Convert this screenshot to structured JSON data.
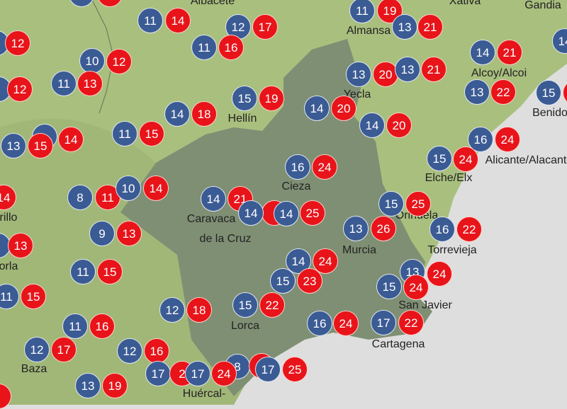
{
  "map": {
    "colors": {
      "min_pin": "#3b5b94",
      "max_pin": "#e8141a",
      "land": "#a9bf7e",
      "region": "#7d8d72",
      "sea": "#dedede"
    },
    "labels": [
      "Albacete",
      "Xàtiva",
      "Gandia",
      "Almansa",
      "Alcoy/Alcoi",
      "Yecla",
      "Hellín",
      "Benido",
      "Alicante/Alacant",
      "Elche/Elx",
      "Cieza",
      "Caravaca",
      "de la Cruz",
      "rillo",
      "orla",
      "Orihuela",
      "Murcia",
      "Torrevieja",
      "San Javier",
      "Lorca",
      "Cartagena",
      "Baza",
      "Huércal-"
    ],
    "pins": [
      {
        "v": "",
        "k": "min"
      },
      {
        "v": "",
        "k": "max"
      },
      {
        "v": "11",
        "k": "min"
      },
      {
        "v": "14",
        "k": "max"
      },
      {
        "v": "12",
        "k": "min"
      },
      {
        "v": "17",
        "k": "max"
      },
      {
        "v": "11",
        "k": "min"
      },
      {
        "v": "16",
        "k": "max"
      },
      {
        "v": "",
        "k": "min"
      },
      {
        "v": "12",
        "k": "max"
      },
      {
        "v": "10",
        "k": "min"
      },
      {
        "v": "12",
        "k": "max"
      },
      {
        "v": "11",
        "k": "min"
      },
      {
        "v": "13",
        "k": "max"
      },
      {
        "v": "",
        "k": "min"
      },
      {
        "v": "12",
        "k": "max"
      },
      {
        "v": "15",
        "k": "min"
      },
      {
        "v": "19",
        "k": "max"
      },
      {
        "v": "14",
        "k": "min"
      },
      {
        "v": "18",
        "k": "max"
      },
      {
        "v": "11",
        "k": "min"
      },
      {
        "v": "15",
        "k": "max"
      },
      {
        "v": "",
        "k": "min"
      },
      {
        "v": "13",
        "k": "min"
      },
      {
        "v": "15",
        "k": "max"
      },
      {
        "v": "14",
        "k": "max"
      },
      {
        "v": "14",
        "k": "max"
      },
      {
        "v": "8",
        "k": "min"
      },
      {
        "v": "11",
        "k": "max"
      },
      {
        "v": "10",
        "k": "min"
      },
      {
        "v": "14",
        "k": "max"
      },
      {
        "v": "14",
        "k": "min"
      },
      {
        "v": "21",
        "k": "max"
      },
      {
        "v": "11",
        "k": "min"
      },
      {
        "v": "19",
        "k": "max"
      },
      {
        "v": "13",
        "k": "min"
      },
      {
        "v": "21",
        "k": "max"
      },
      {
        "v": "14",
        "k": "min"
      },
      {
        "v": "14",
        "k": "min"
      },
      {
        "v": "21",
        "k": "max"
      },
      {
        "v": "13",
        "k": "min"
      },
      {
        "v": "20",
        "k": "max"
      },
      {
        "v": "13",
        "k": "min"
      },
      {
        "v": "21",
        "k": "max"
      },
      {
        "v": "13",
        "k": "min"
      },
      {
        "v": "22",
        "k": "max"
      },
      {
        "v": "15",
        "k": "min"
      },
      {
        "v": "",
        "k": "max"
      },
      {
        "v": "14",
        "k": "min"
      },
      {
        "v": "20",
        "k": "max"
      },
      {
        "v": "14",
        "k": "min"
      },
      {
        "v": "20",
        "k": "max"
      },
      {
        "v": "16",
        "k": "min"
      },
      {
        "v": "24",
        "k": "max"
      },
      {
        "v": "16",
        "k": "min"
      },
      {
        "v": "24",
        "k": "max"
      },
      {
        "v": "15",
        "k": "min"
      },
      {
        "v": "24",
        "k": "max"
      },
      {
        "v": "",
        "k": "max"
      },
      {
        "v": "14",
        "k": "min"
      },
      {
        "v": "14",
        "k": "min"
      },
      {
        "v": "25",
        "k": "max"
      },
      {
        "v": "15",
        "k": "min"
      },
      {
        "v": "25",
        "k": "max"
      },
      {
        "v": "13",
        "k": "min"
      },
      {
        "v": "26",
        "k": "max"
      },
      {
        "v": "16",
        "k": "min"
      },
      {
        "v": "22",
        "k": "max"
      },
      {
        "v": "9",
        "k": "min"
      },
      {
        "v": "13",
        "k": "max"
      },
      {
        "v": "",
        "k": "min"
      },
      {
        "v": "13",
        "k": "max"
      },
      {
        "v": "14",
        "k": "min"
      },
      {
        "v": "24",
        "k": "max"
      },
      {
        "v": "11",
        "k": "min"
      },
      {
        "v": "15",
        "k": "max"
      },
      {
        "v": "13",
        "k": "min"
      },
      {
        "v": "24",
        "k": "max"
      },
      {
        "v": "15",
        "k": "min"
      },
      {
        "v": "23",
        "k": "max"
      },
      {
        "v": "15",
        "k": "min"
      },
      {
        "v": "24",
        "k": "max"
      },
      {
        "v": "11",
        "k": "min"
      },
      {
        "v": "15",
        "k": "max"
      },
      {
        "v": "15",
        "k": "min"
      },
      {
        "v": "22",
        "k": "max"
      },
      {
        "v": "12",
        "k": "min"
      },
      {
        "v": "18",
        "k": "max"
      },
      {
        "v": "16",
        "k": "min"
      },
      {
        "v": "24",
        "k": "max"
      },
      {
        "v": "17",
        "k": "min"
      },
      {
        "v": "22",
        "k": "max"
      },
      {
        "v": "11",
        "k": "min"
      },
      {
        "v": "16",
        "k": "max"
      },
      {
        "v": "12",
        "k": "min"
      },
      {
        "v": "17",
        "k": "max"
      },
      {
        "v": "12",
        "k": "min"
      },
      {
        "v": "16",
        "k": "max"
      },
      {
        "v": "8",
        "k": "min"
      },
      {
        "v": "",
        "k": "max"
      },
      {
        "v": "17",
        "k": "min"
      },
      {
        "v": "25",
        "k": "max"
      },
      {
        "v": "17",
        "k": "min"
      },
      {
        "v": "2",
        "k": "max"
      },
      {
        "v": "17",
        "k": "min"
      },
      {
        "v": "24",
        "k": "max"
      },
      {
        "v": "13",
        "k": "min"
      },
      {
        "v": "19",
        "k": "max"
      },
      {
        "v": "",
        "k": "max"
      }
    ]
  }
}
